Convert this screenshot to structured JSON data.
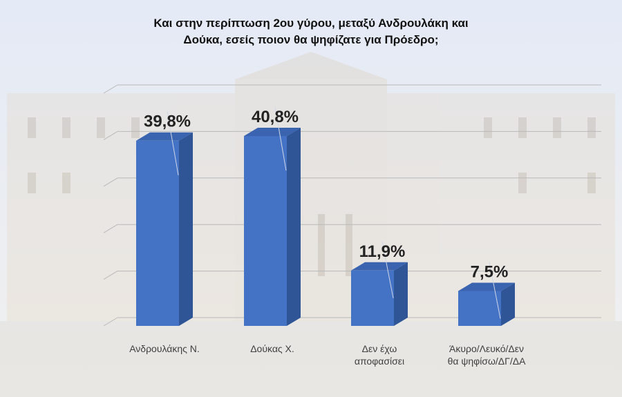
{
  "title_lines": [
    "Και στην περίπτωση 2ου γύρου, μεταξύ Ανδρουλάκη και",
    "Δούκα, εσείς ποιον θα ψηφίζατε για Πρόεδρο;"
  ],
  "chart_data": {
    "type": "bar",
    "style": "3d-column",
    "categories": [
      [
        "Ανδρουλάκης Ν."
      ],
      [
        "Δούκας Χ."
      ],
      [
        "Δεν έχω",
        "αποφασίσει"
      ],
      [
        "Άκυρο/Λευκό/Δεν",
        "θα ψηφίσω/ΔΓ/ΔΑ"
      ]
    ],
    "values": [
      39.8,
      40.8,
      11.9,
      7.5
    ],
    "value_labels": [
      "39,8%",
      "40,8%",
      "11,9%",
      "7,5%"
    ],
    "ylim": [
      0,
      50
    ],
    "grid": true,
    "colors": {
      "front": "#4472c4",
      "side": "#2f5597",
      "top": "#3a64b0"
    }
  }
}
